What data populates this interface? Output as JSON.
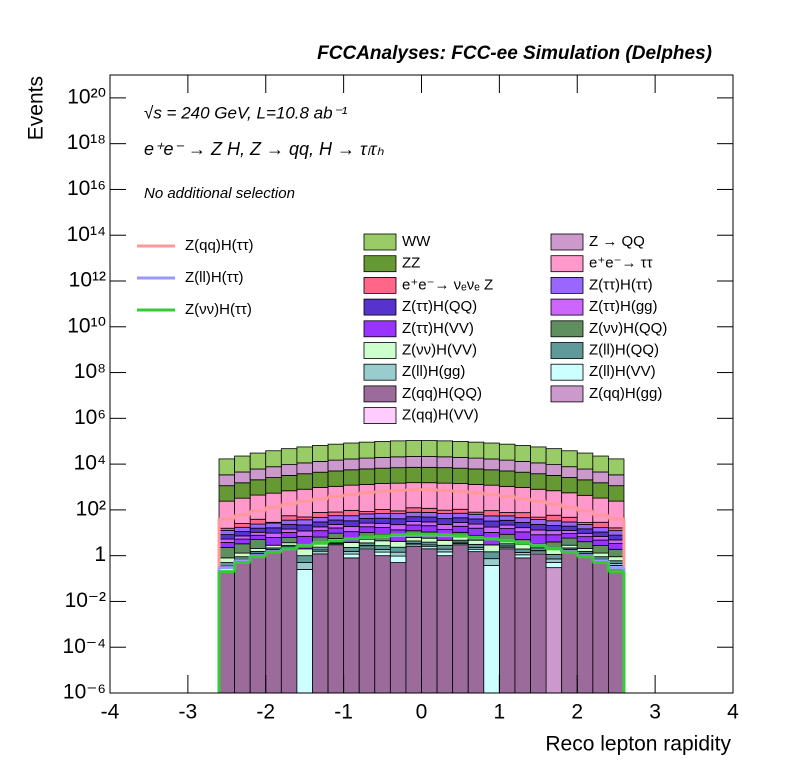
{
  "chart_data": {
    "type": "stacked_histogram",
    "title": "FCCAnalyses: FCC-ee Simulation (Delphes)",
    "annotations": [
      "√s = 240 GeV, L=10.8 ab⁻¹",
      "e⁺e⁻ → Z H, Z → qq, H → τₗτₕ",
      "No additional selection"
    ],
    "x_label": "Reco lepton rapidity",
    "y_label": "Events",
    "log_y": true,
    "xlim": [
      -4,
      4
    ],
    "xticks": [
      -4,
      -3,
      -2,
      -1,
      0,
      1,
      2,
      3,
      4
    ],
    "ylim": [
      1e-06,
      1e+21
    ],
    "yticks": [
      {
        "value": 1e-06,
        "label": "10⁻⁶"
      },
      {
        "value": 0.0001,
        "label": "10⁻⁴"
      },
      {
        "value": 0.01,
        "label": "10⁻²"
      },
      1,
      {
        "value": 100,
        "label": "10²"
      },
      {
        "value": 10000.0,
        "label": "10⁴"
      },
      {
        "value": 1000000.0,
        "label": "10⁶"
      },
      {
        "value": 100000000.0,
        "label": "10⁸"
      },
      {
        "value": 10000000000.0,
        "label": "10¹⁰"
      },
      {
        "value": 1000000000000.0,
        "label": "10¹²"
      },
      {
        "value": 100000000000000.0,
        "label": "10¹⁴"
      },
      {
        "value": 1e+16,
        "label": "10¹⁶"
      },
      {
        "value": 1e+18,
        "label": "10¹⁸"
      },
      {
        "value": 1e+20,
        "label": "10²⁰"
      }
    ],
    "bins": [
      -2.6,
      -2.4,
      -2.2,
      -2.0,
      -1.8,
      -1.6,
      -1.4,
      -1.2,
      -1.0,
      -0.8,
      -0.6,
      -0.4,
      -0.2,
      0,
      0.2,
      0.4,
      0.6,
      0.8,
      1.0,
      1.2,
      1.4,
      1.6,
      1.8,
      2.0,
      2.2,
      2.4,
      2.6
    ],
    "series": [
      {
        "name": "WW",
        "color": "#99cc66",
        "values": [
          13500,
          18000,
          24300,
          30600,
          37800,
          45000,
          52200,
          59400,
          66600,
          72900,
          78300,
          82800,
          85500,
          85500,
          82800,
          78300,
          72900,
          66600,
          59400,
          52200,
          45000,
          37800,
          30600,
          24300,
          18000,
          13500
        ]
      },
      {
        "name": "Z → QQ",
        "color": "#cc99cc",
        "values": [
          2250,
          3000,
          4050,
          5100,
          6300,
          7500,
          8700,
          9900,
          11100,
          12150,
          13050,
          13800,
          14250,
          14250,
          13800,
          13050,
          12150,
          11100,
          9900,
          8700,
          7500,
          6300,
          5100,
          4050,
          3000,
          2250
        ]
      },
      {
        "name": "ZZ",
        "color": "#669933",
        "values": [
          900,
          1200,
          1620,
          2040,
          2520,
          3000,
          3480,
          3960,
          4440,
          4860,
          5220,
          5520,
          5700,
          5700,
          5520,
          5220,
          4860,
          4440,
          3960,
          3480,
          3000,
          2520,
          2040,
          1620,
          1200,
          900
        ]
      },
      {
        "name": "e⁺e⁻→ ττ",
        "color": "#ff99cc",
        "values": [
          225,
          300,
          405,
          510,
          630,
          750,
          870,
          990,
          1110,
          1215,
          1305,
          1380,
          1425,
          1425,
          1380,
          1305,
          1215,
          1110,
          990,
          870,
          750,
          630,
          510,
          405,
          300,
          225
        ]
      },
      {
        "name": "e⁺e⁻→ νₑνₑ Z",
        "color": "#ff6688",
        "values": [
          3,
          8,
          15,
          2,
          20,
          12,
          30,
          25,
          40,
          18,
          35,
          22,
          45,
          40,
          28,
          35,
          15,
          38,
          22,
          30,
          10,
          25,
          18,
          5,
          12,
          4
        ]
      },
      {
        "name": "Z(ττ)H(ττ)",
        "color": "#9966ff",
        "values": [
          4.5,
          6,
          8.1,
          10.2,
          12.6,
          15,
          17.4,
          19.8,
          22.2,
          24.3,
          26.1,
          27.6,
          28.5,
          28.5,
          27.6,
          26.1,
          24.3,
          22.2,
          19.8,
          17.4,
          15,
          12.6,
          10.2,
          8.1,
          6,
          4.5
        ]
      },
      {
        "name": "Z(ττ)H(QQ)",
        "color": "#5533cc",
        "values": [
          3,
          4,
          5.4,
          6.8,
          8.4,
          10,
          11.6,
          13.2,
          14.8,
          16.2,
          17.4,
          18.4,
          19,
          19,
          18.4,
          17.4,
          16.2,
          14.8,
          13.2,
          11.6,
          10,
          8.4,
          6.8,
          5.4,
          4,
          3
        ]
      },
      {
        "name": "Z(ττ)H(gg)",
        "color": "#cc66ff",
        "values": [
          1.5,
          2,
          2.7,
          3.4,
          4.2,
          5,
          5.8,
          6.6,
          7.4,
          8.1,
          8.7,
          9.2,
          9.5,
          9.5,
          9.2,
          8.7,
          8.1,
          7.4,
          6.6,
          5.8,
          5,
          4.2,
          3.4,
          2.7,
          2,
          1.5
        ]
      },
      {
        "name": "Z(ττ)H(VV)",
        "color": "#9933ff",
        "values": [
          1.5,
          2,
          2.7,
          3.4,
          4.2,
          5,
          5.8,
          6.6,
          7.4,
          8.1,
          8.7,
          9.2,
          9.5,
          9.5,
          9.2,
          8.7,
          8.1,
          7.4,
          6.6,
          5.8,
          5,
          4.2,
          3.4,
          2.7,
          2,
          1.5
        ]
      },
      {
        "name": "Z(νν)H(QQ)",
        "color": "#5f8f5f",
        "values": [
          1.5,
          2,
          3,
          0.01,
          2.5,
          0.005,
          3,
          4,
          0.02,
          5,
          4,
          0.05,
          6,
          5,
          0.03,
          4,
          3,
          0.01,
          4,
          2,
          0.002,
          2,
          3,
          2,
          1.5,
          1
        ]
      },
      {
        "name": "Z(νν)H(VV)",
        "color": "#ccffcc",
        "values": [
          0.3,
          0.4,
          0.54,
          0.68,
          0.84,
          1,
          1.16,
          1.32,
          1.48,
          1.62,
          1.74,
          1.84,
          1.9,
          1.9,
          1.84,
          1.74,
          1.62,
          1.48,
          1.32,
          1.16,
          1,
          0.84,
          0.68,
          0.54,
          0.4,
          0.3
        ]
      },
      {
        "name": "Z(ll)H(QQ)",
        "color": "#5f9999",
        "values": [
          0.15,
          0.2,
          0.27,
          0.34,
          0.42,
          0.5,
          0.58,
          0.66,
          0.74,
          0.81,
          0.87,
          0.92,
          0.95,
          0.95,
          0.92,
          0.87,
          0.81,
          0.74,
          0.66,
          0.58,
          0.5,
          0.42,
          0.34,
          0.27,
          0.2,
          0.15
        ]
      },
      {
        "name": "Z(ll)H(gg)",
        "color": "#99cccc",
        "values": [
          0.075,
          0.1,
          0.135,
          0.17,
          0.21,
          0.25,
          0.29,
          0.33,
          0.37,
          0.405,
          0.435,
          0.46,
          0.475,
          0.475,
          0.46,
          0.435,
          0.405,
          0.37,
          0.33,
          0.29,
          0.25,
          0.21,
          0.17,
          0.135,
          0.1,
          0.075
        ]
      },
      {
        "name": "Z(ll)H(VV)",
        "color": "#ccffff",
        "values": [
          0.075,
          0.1,
          0.135,
          0.17,
          0.21,
          0.25,
          0.29,
          0.33,
          0.37,
          0.405,
          0.435,
          0.46,
          0.475,
          0.475,
          0.46,
          0.435,
          0.405,
          0.37,
          0.33,
          0.29,
          0.25,
          0.21,
          0.17,
          0.135,
          0.1,
          0.075
        ]
      },
      {
        "name": "Z(qq)H(QQ)",
        "color": "#9b6b9b",
        "values": [
          0.2,
          0.5,
          1,
          1.5,
          2,
          0,
          1.2,
          3,
          0.8,
          2,
          1,
          0.5,
          2.5,
          2,
          1,
          3,
          1.5,
          0,
          2,
          0.8,
          1.2,
          0,
          1.5,
          1,
          0.5,
          0.3
        ]
      },
      {
        "name": "Z(qq)H(gg)",
        "color": "#cc99cc",
        "values": [
          0,
          0,
          0,
          0,
          0,
          0,
          0,
          0,
          0,
          0,
          0,
          0,
          0,
          0,
          0,
          0,
          0,
          0,
          0,
          0,
          0,
          0.3,
          0,
          0,
          0,
          0
        ]
      },
      {
        "name": "Z(qq)H(VV)",
        "color": "#ffccff",
        "values": [
          0,
          0,
          0,
          0,
          0,
          0,
          0,
          0,
          0,
          0,
          0,
          0,
          0,
          0,
          0,
          0,
          0,
          0,
          0,
          0,
          0,
          0,
          0,
          0,
          0,
          0
        ]
      }
    ],
    "lines": [
      {
        "name": "Z(qq)H(ττ)",
        "color": "#ff9999",
        "values": [
          40,
          60,
          90,
          130,
          180,
          240,
          310,
          390,
          470,
          560,
          640,
          710,
          760,
          760,
          710,
          640,
          560,
          470,
          390,
          310,
          240,
          180,
          130,
          90,
          60,
          40
        ]
      },
      {
        "name": "Z(ll)H(ττ)",
        "color": "#9999ff",
        "values": [
          0.3,
          0.6,
          1,
          1.5,
          2,
          2.8,
          3.6,
          4.5,
          5.4,
          6.2,
          7,
          7.6,
          8,
          8,
          7.6,
          7,
          6.2,
          5.4,
          4.5,
          3.6,
          2.8,
          2,
          1.5,
          1,
          0.6,
          0.3
        ]
      },
      {
        "name": "Z(νν)H(ττ)",
        "color": "#33cc33",
        "values": [
          0.2,
          0.5,
          0.9,
          1.4,
          2,
          2.7,
          3.5,
          4.4,
          5.4,
          6.4,
          7.4,
          8.2,
          8.8,
          8.8,
          8.2,
          7.4,
          6.4,
          5.4,
          4.4,
          3.5,
          2.7,
          2,
          1.4,
          0.9,
          0.5,
          0.2
        ]
      }
    ]
  }
}
